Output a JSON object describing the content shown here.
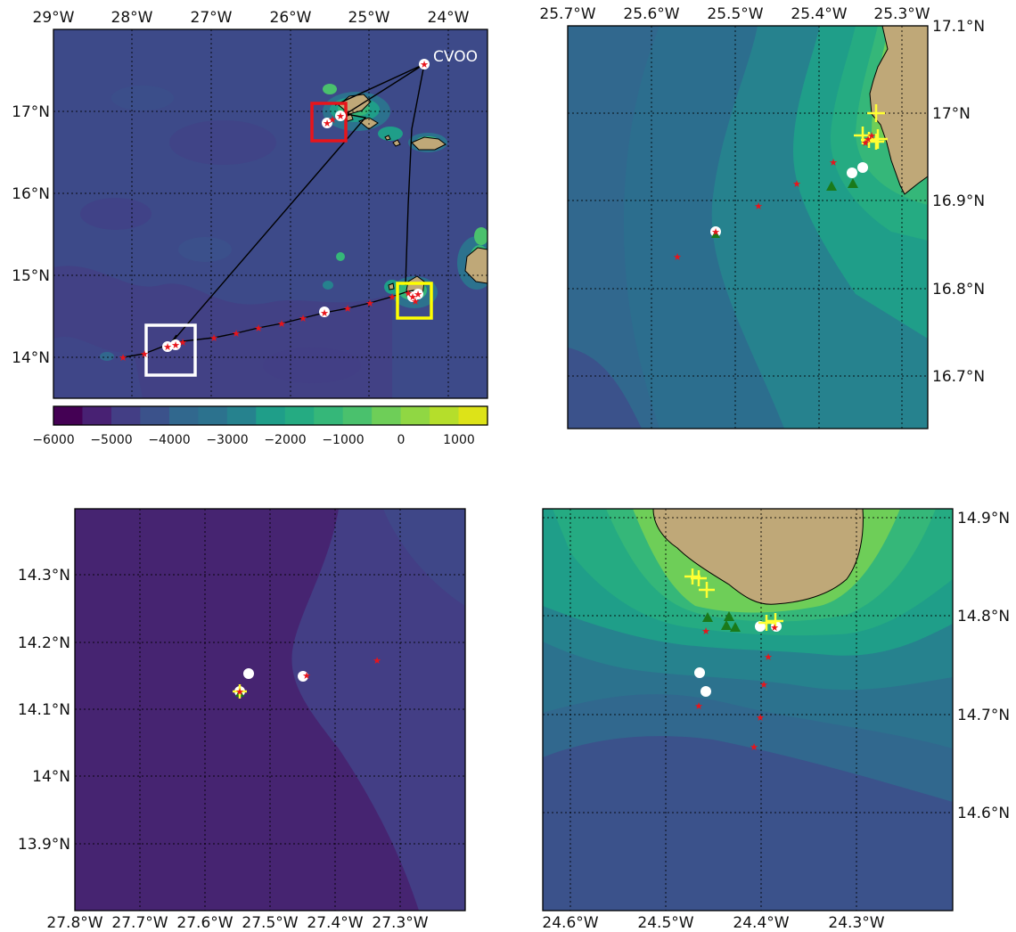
{
  "colorbar": {
    "ticks": [
      "−6000",
      "−5000",
      "−4000",
      "−3000",
      "−2000",
      "−1000",
      "0",
      "1000"
    ],
    "levels": [
      "#440154",
      "#482173",
      "#433e85",
      "#3b528b",
      "#31688e",
      "#2c728e",
      "#26828e",
      "#1f9e89",
      "#25ab82",
      "#35b779",
      "#4ac16d",
      "#6ece58",
      "#90d743",
      "#b5de2b",
      "#dde318"
    ],
    "range": [
      -6000,
      1500
    ]
  },
  "colors": {
    "land": "#bfa878",
    "station": "#e8141b",
    "glider": "#ffffff",
    "triangle": "#1a7a1a",
    "cross": "#ffff33",
    "box_red": "#e8141b",
    "box_white": "#ffffff",
    "box_yellow": "#ffff00"
  },
  "maps": {
    "overview": {
      "lon_ticks": [
        "29°W",
        "28°W",
        "27°W",
        "26°W",
        "25°W",
        "24°W"
      ],
      "lat_ticks": [
        "17°N",
        "16°N",
        "15°N",
        "14°N"
      ],
      "station_label": "CVOO"
    },
    "north": {
      "lon_ticks": [
        "25.7°W",
        "25.6°W",
        "25.5°W",
        "25.4°W",
        "25.3°W"
      ],
      "lat_ticks": [
        "17.1°N",
        "17°N",
        "16.9°N",
        "16.8°N",
        "16.7°N"
      ]
    },
    "west": {
      "lon_ticks": [
        "27.8°W",
        "27.7°W",
        "27.6°W",
        "27.5°W",
        "27.4°W",
        "27.3°W"
      ],
      "lat_ticks": [
        "14.3°N",
        "14.2°N",
        "14.1°N",
        "14°N",
        "13.9°N"
      ]
    },
    "south": {
      "lon_ticks": [
        "24.6°W",
        "24.5°W",
        "24.4°W",
        "24.3°W"
      ],
      "lat_ticks": [
        "14.9°N",
        "14.8°N",
        "14.7°N",
        "14.6°N"
      ]
    }
  }
}
